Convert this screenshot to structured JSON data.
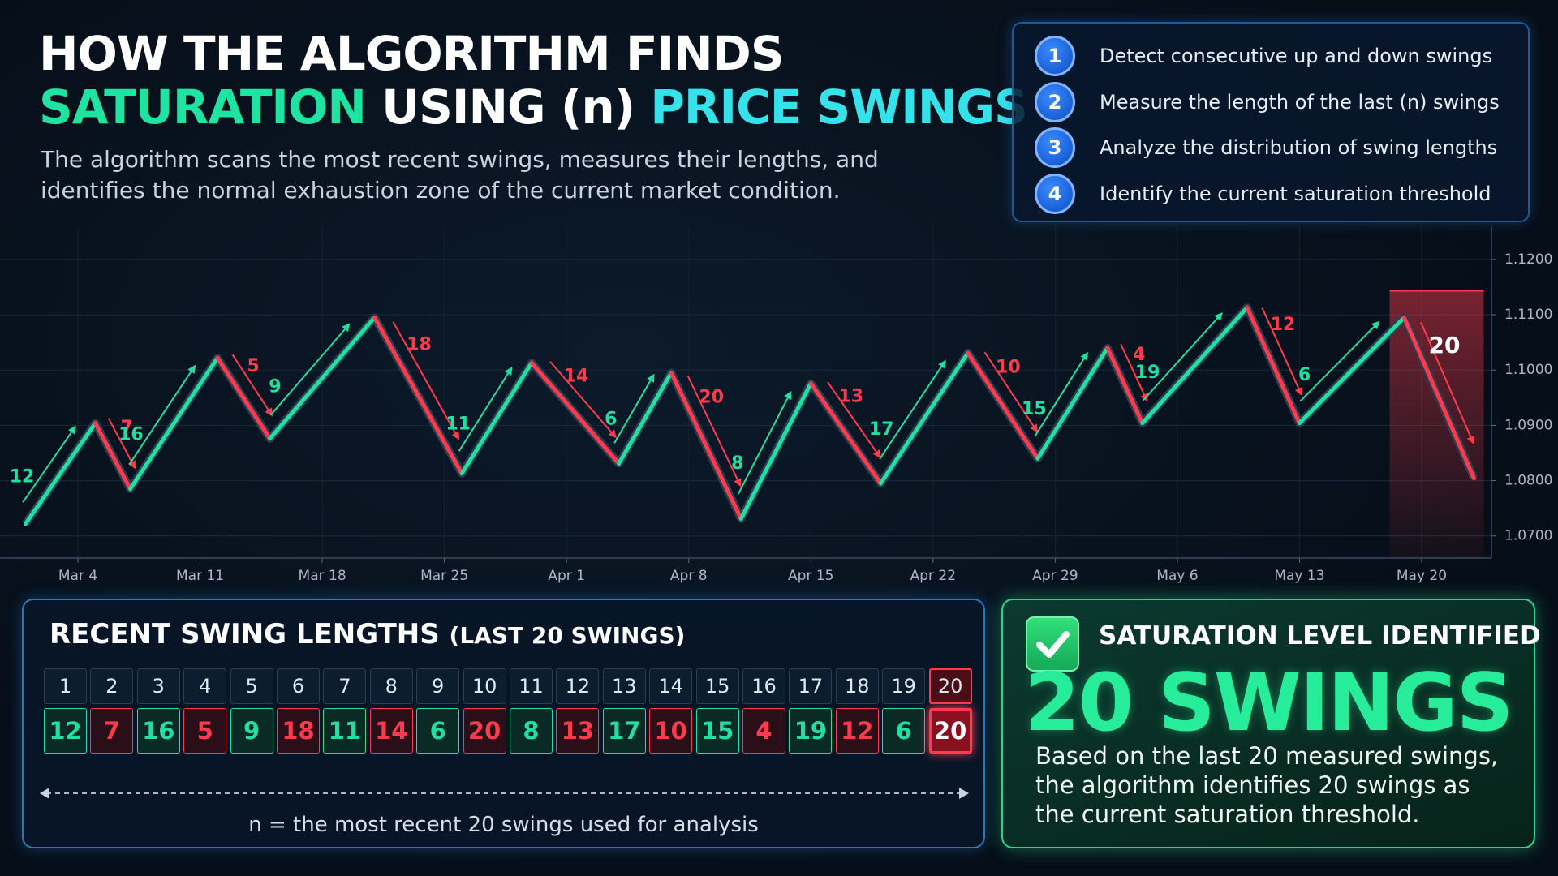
{
  "header": {
    "title_line1": "HOW THE ALGORITHM FINDS",
    "title_part1": "SATURATION",
    "title_part2": "USING (n)",
    "title_part3": "PRICE SWINGS",
    "subtitle": "The algorithm scans the most recent swings, measures their lengths, and identifies the normal exhaustion zone of the current market condition."
  },
  "steps": [
    {
      "number": 1,
      "text": "Detect consecutive up and down swings"
    },
    {
      "number": 2,
      "text": "Measure the length of the last (n) swings"
    },
    {
      "number": 3,
      "text": "Analyze the distribution of swing lengths"
    },
    {
      "number": 4,
      "text": "Identify the current saturation threshold"
    }
  ],
  "chart_data": {
    "type": "line",
    "x": [
      "Mar 1",
      "Mar 5",
      "Mar 7",
      "Mar 12",
      "Mar 15",
      "Mar 21",
      "Mar 26",
      "Mar 30",
      "Apr 4",
      "Apr 7",
      "Apr 11",
      "Apr 15",
      "Apr 19",
      "Apr 24",
      "Apr 28",
      "May 2",
      "May 4",
      "May 10",
      "May 13",
      "May 19",
      "May 23"
    ],
    "values": [
      1.0722,
      1.0904,
      1.0785,
      1.1022,
      1.0876,
      1.1095,
      1.0813,
      1.1013,
      1.0831,
      1.0995,
      1.0731,
      1.0976,
      1.0795,
      1.1031,
      1.084,
      1.104,
      1.0904,
      1.1113,
      1.0904,
      1.1095,
      1.0804
    ],
    "xlim": [
      "Feb 29",
      "May 24"
    ],
    "xticks": [
      "Mar 4",
      "Mar 11",
      "Mar 18",
      "Mar 25",
      "Apr 1",
      "Apr 8",
      "Apr 15",
      "Apr 22",
      "Apr 29",
      "May 6",
      "May 13",
      "May 20"
    ],
    "ylim": [
      1.066,
      1.126
    ],
    "yticks": [
      {
        "value": 1.07,
        "label": "1.0700"
      },
      {
        "value": 1.08,
        "label": "1.0800"
      },
      {
        "value": 1.09,
        "label": "1.0900"
      },
      {
        "value": 1.1,
        "label": "1.1000"
      },
      {
        "value": 1.11,
        "label": "1.1100"
      },
      {
        "value": 1.12,
        "label": "1.1200"
      }
    ],
    "up_color": "#1fe0a0",
    "down_color": "#ff3a4c",
    "grid": true
  },
  "swing_table": {
    "title": "RECENT SWING LENGTHS",
    "title_note": "(LAST 20 SWINGS)",
    "indices": [
      1,
      2,
      3,
      4,
      5,
      6,
      7,
      8,
      9,
      10,
      11,
      12,
      13,
      14,
      15,
      16,
      17,
      18,
      19,
      20
    ],
    "lengths": [
      12,
      7,
      16,
      5,
      9,
      18,
      11,
      14,
      6,
      20,
      8,
      13,
      17,
      10,
      15,
      4,
      19,
      12,
      6,
      20
    ],
    "caption": "n = the most recent 20 swings used for analysis"
  },
  "saturation": {
    "heading": "SATURATION LEVEL IDENTIFIED",
    "result": "20 SWINGS",
    "description": "Based on the last 20 measured swings, the algorithm identifies 20 swings as the current saturation threshold."
  }
}
